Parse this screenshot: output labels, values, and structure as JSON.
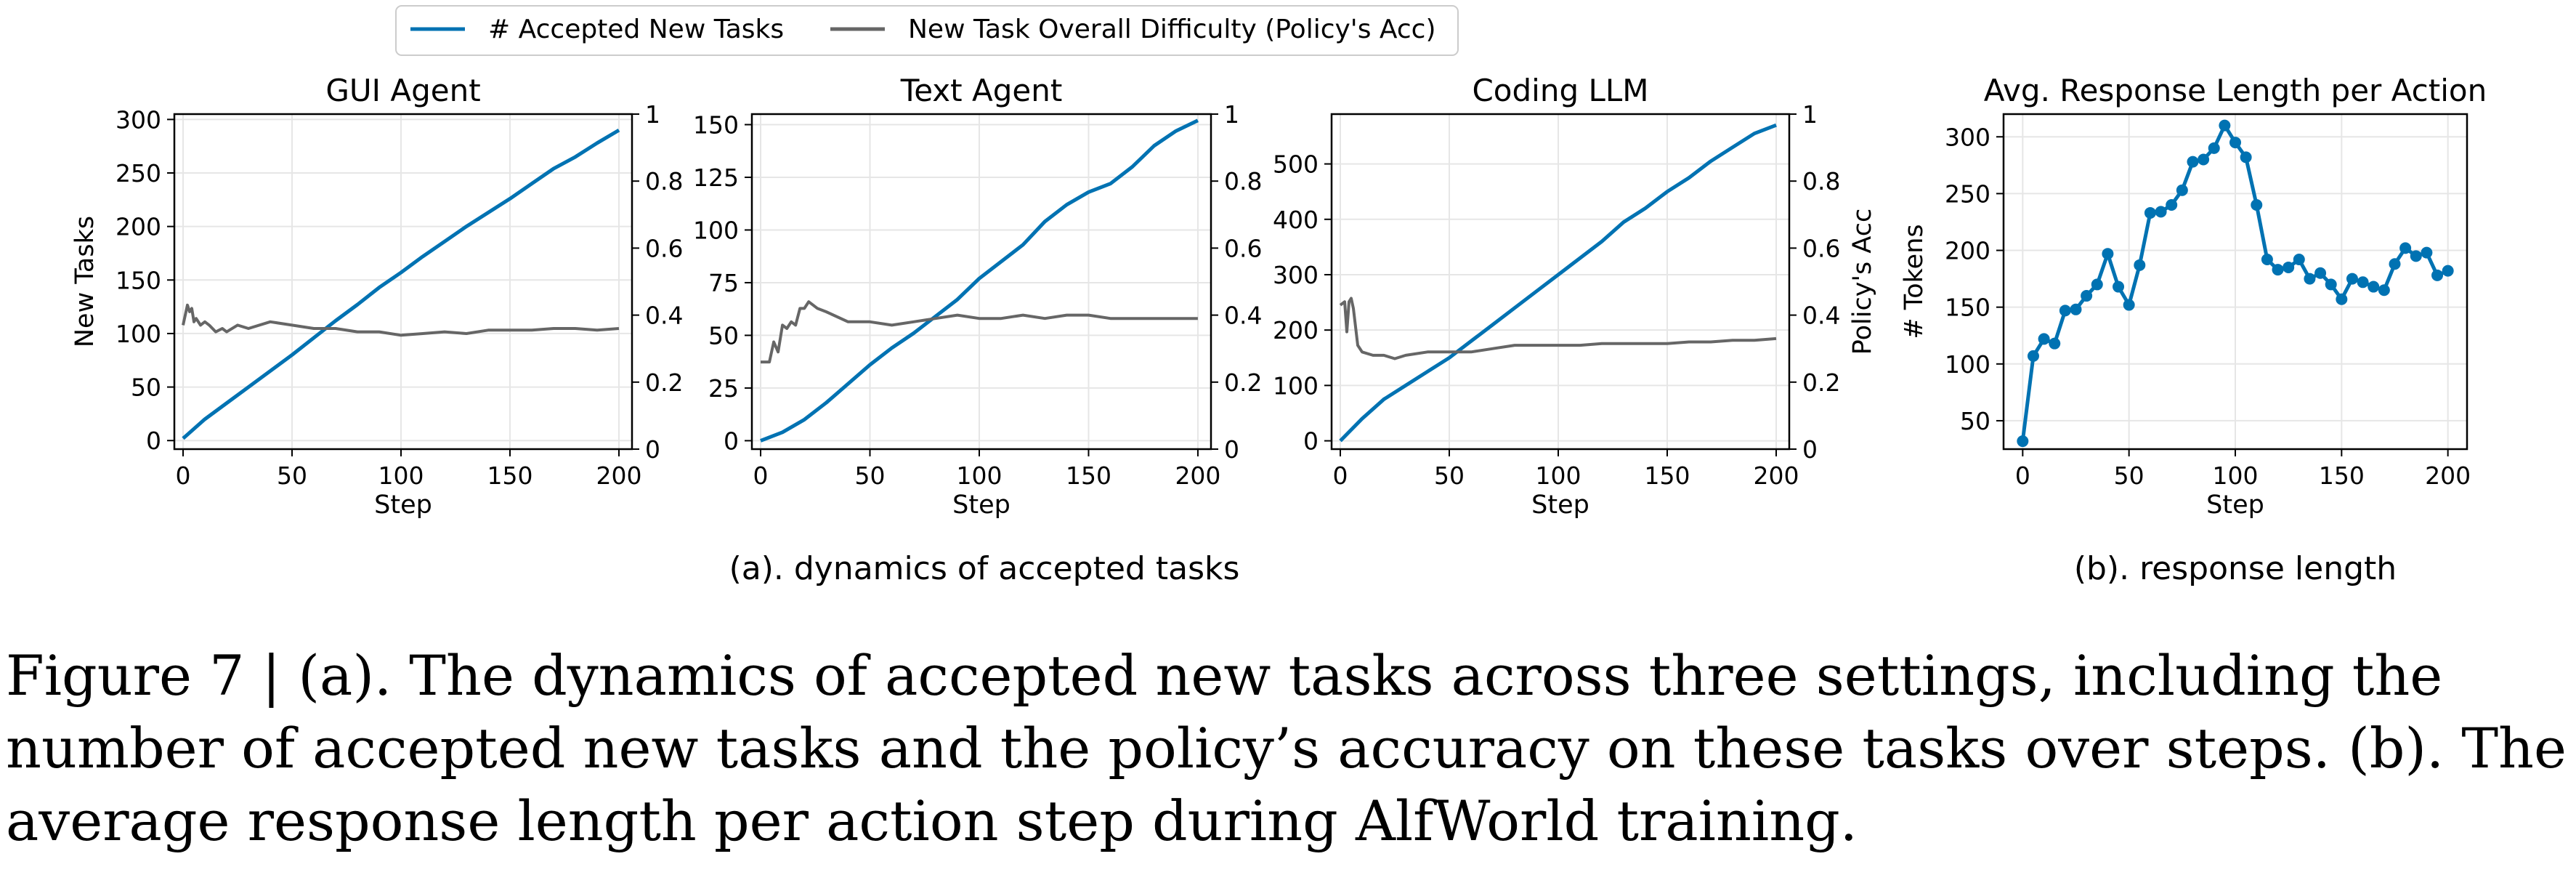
{
  "legend": {
    "entries": [
      {
        "label": "# Accepted New Tasks",
        "color": "#0072b2"
      },
      {
        "label": "New Task Overall Difficulty (Policy's Acc)",
        "color": "#666666"
      }
    ],
    "placement": "top"
  },
  "subcaptions": {
    "a": "(a). dynamics of accepted tasks",
    "b": "(b). response length"
  },
  "caption": "Figure 7 | (a). The dynamics of accepted new tasks across three settings, including the number of accepted new tasks and the policy’s accuracy on these tasks over steps. (b). The average response length per action step during AlfWorld training.",
  "chart_data": [
    {
      "type": "line",
      "title": "GUI Agent",
      "xlabel": "Step",
      "ylabel": "New Tasks",
      "y2label": "",
      "xlim": [
        -4,
        206
      ],
      "ylim": [
        -8,
        305
      ],
      "y2lim": [
        0,
        1.0
      ],
      "xticks": [
        0,
        50,
        100,
        150,
        200
      ],
      "yticks": [
        0,
        50,
        100,
        150,
        200,
        250,
        300
      ],
      "y2ticks": [
        0.0,
        0.2,
        0.4,
        0.6,
        0.8,
        1.0
      ],
      "grid": true,
      "series": [
        {
          "name": "# Accepted New Tasks",
          "axis": "left",
          "color": "#0072b2",
          "x": [
            0,
            10,
            20,
            30,
            40,
            50,
            60,
            70,
            80,
            90,
            100,
            110,
            120,
            130,
            140,
            150,
            160,
            170,
            180,
            190,
            200
          ],
          "y": [
            2,
            20,
            35,
            50,
            65,
            80,
            96,
            112,
            127,
            143,
            157,
            172,
            186,
            200,
            213,
            226,
            240,
            254,
            265,
            278,
            290
          ]
        },
        {
          "name": "New Task Overall Difficulty (Policy's Acc)",
          "axis": "right",
          "color": "#666666",
          "x": [
            0,
            2,
            3,
            4,
            5,
            6,
            8,
            10,
            12,
            15,
            18,
            20,
            25,
            30,
            40,
            50,
            60,
            70,
            80,
            90,
            100,
            110,
            120,
            130,
            140,
            150,
            160,
            170,
            180,
            190,
            200
          ],
          "y": [
            0.37,
            0.43,
            0.41,
            0.42,
            0.38,
            0.39,
            0.37,
            0.38,
            0.37,
            0.35,
            0.36,
            0.35,
            0.37,
            0.36,
            0.38,
            0.37,
            0.36,
            0.36,
            0.35,
            0.35,
            0.34,
            0.345,
            0.35,
            0.345,
            0.355,
            0.355,
            0.355,
            0.36,
            0.36,
            0.355,
            0.36
          ]
        }
      ]
    },
    {
      "type": "line",
      "title": "Text Agent",
      "xlabel": "Step",
      "ylabel": "",
      "y2label": "",
      "xlim": [
        -4,
        206
      ],
      "ylim": [
        -4,
        155
      ],
      "y2lim": [
        0,
        1.0
      ],
      "xticks": [
        0,
        50,
        100,
        150,
        200
      ],
      "yticks": [
        0,
        25,
        50,
        75,
        100,
        125,
        150
      ],
      "y2ticks": [
        0.0,
        0.2,
        0.4,
        0.6,
        0.8,
        1.0
      ],
      "grid": true,
      "series": [
        {
          "name": "# Accepted New Tasks",
          "axis": "left",
          "color": "#0072b2",
          "x": [
            0,
            10,
            20,
            30,
            40,
            50,
            60,
            70,
            80,
            90,
            100,
            110,
            120,
            130,
            140,
            150,
            160,
            170,
            180,
            190,
            200
          ],
          "y": [
            0,
            4,
            10,
            18,
            27,
            36,
            44,
            51,
            59,
            67,
            77,
            85,
            93,
            104,
            112,
            118,
            122,
            130,
            140,
            147,
            152
          ]
        },
        {
          "name": "New Task Overall Difficulty (Policy's Acc)",
          "axis": "right",
          "color": "#666666",
          "x": [
            0,
            4,
            6,
            8,
            10,
            12,
            14,
            16,
            18,
            20,
            22,
            24,
            26,
            30,
            40,
            50,
            60,
            70,
            80,
            90,
            100,
            110,
            120,
            130,
            140,
            150,
            160,
            170,
            180,
            190,
            200
          ],
          "y": [
            0.26,
            0.26,
            0.32,
            0.29,
            0.37,
            0.36,
            0.38,
            0.37,
            0.42,
            0.42,
            0.44,
            0.43,
            0.42,
            0.41,
            0.38,
            0.38,
            0.37,
            0.38,
            0.39,
            0.4,
            0.39,
            0.39,
            0.4,
            0.39,
            0.4,
            0.4,
            0.39,
            0.39,
            0.39,
            0.39,
            0.39
          ]
        }
      ]
    },
    {
      "type": "line",
      "title": "Coding LLM",
      "xlabel": "Step",
      "ylabel": "",
      "y2label": "Policy's Acc",
      "xlim": [
        -4,
        206
      ],
      "ylim": [
        -15,
        590
      ],
      "y2lim": [
        0,
        1.0
      ],
      "xticks": [
        0,
        50,
        100,
        150,
        200
      ],
      "yticks": [
        0,
        100,
        200,
        300,
        400,
        500
      ],
      "y2ticks": [
        0.0,
        0.2,
        0.4,
        0.6,
        0.8,
        1.0
      ],
      "grid": true,
      "series": [
        {
          "name": "# Accepted New Tasks",
          "axis": "left",
          "color": "#0072b2",
          "x": [
            0,
            10,
            20,
            30,
            40,
            50,
            60,
            70,
            80,
            90,
            100,
            110,
            120,
            130,
            140,
            150,
            160,
            170,
            180,
            190,
            200
          ],
          "y": [
            0,
            40,
            75,
            100,
            125,
            150,
            180,
            210,
            240,
            270,
            300,
            330,
            360,
            395,
            420,
            450,
            475,
            505,
            530,
            555,
            570
          ]
        },
        {
          "name": "New Task Overall Difficulty (Policy's Acc)",
          "axis": "right",
          "color": "#666666",
          "x": [
            0,
            2,
            3,
            4,
            5,
            6,
            8,
            10,
            15,
            20,
            25,
            30,
            40,
            50,
            60,
            70,
            80,
            90,
            100,
            110,
            120,
            130,
            140,
            150,
            160,
            170,
            180,
            190,
            200
          ],
          "y": [
            0.43,
            0.44,
            0.35,
            0.44,
            0.45,
            0.42,
            0.31,
            0.29,
            0.28,
            0.28,
            0.27,
            0.28,
            0.29,
            0.29,
            0.29,
            0.3,
            0.31,
            0.31,
            0.31,
            0.31,
            0.315,
            0.315,
            0.315,
            0.315,
            0.32,
            0.32,
            0.325,
            0.325,
            0.33
          ]
        }
      ]
    },
    {
      "type": "line",
      "title": "Avg. Response Length per Action",
      "xlabel": "Step",
      "ylabel": "# Tokens",
      "xlim": [
        -9,
        209
      ],
      "ylim": [
        25,
        320
      ],
      "xticks": [
        0,
        50,
        100,
        150,
        200
      ],
      "yticks": [
        50,
        100,
        150,
        200,
        250,
        300
      ],
      "grid": true,
      "markers": true,
      "series": [
        {
          "name": "",
          "axis": "left",
          "color": "#0072b2",
          "x": [
            0,
            5,
            10,
            15,
            20,
            25,
            30,
            35,
            40,
            45,
            50,
            55,
            60,
            65,
            70,
            75,
            80,
            85,
            90,
            95,
            100,
            105,
            110,
            115,
            120,
            125,
            130,
            135,
            140,
            145,
            150,
            155,
            160,
            165,
            170,
            175,
            180,
            185,
            190,
            195,
            200
          ],
          "y": [
            32,
            107,
            122,
            118,
            147,
            148,
            160,
            170,
            197,
            168,
            152,
            187,
            233,
            234,
            240,
            253,
            278,
            280,
            290,
            310,
            295,
            282,
            240,
            192,
            183,
            185,
            192,
            175,
            180,
            170,
            157,
            175,
            172,
            168,
            165,
            188,
            202,
            195,
            198,
            178,
            182
          ]
        }
      ]
    }
  ]
}
